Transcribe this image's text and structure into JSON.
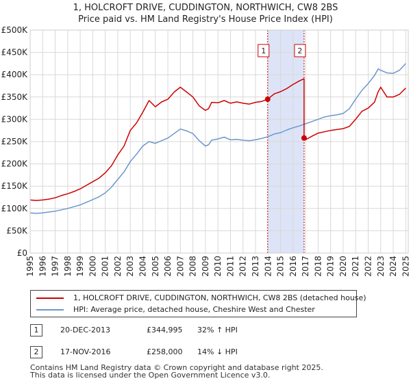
{
  "title_line1": "1, HOLCROFT DRIVE, CUDDINGTON, NORTHWICH, CW8 2BS",
  "title_line2": "Price paid vs. HM Land Registry's House Price Index (HPI)",
  "chart_data": {
    "type": "line",
    "ylim": [
      0,
      500000
    ],
    "xlim": [
      1995,
      2025.2
    ],
    "y_ticks": [
      {
        "value": 0,
        "label": "£0"
      },
      {
        "value": 50000,
        "label": "£50K"
      },
      {
        "value": 100000,
        "label": "£100K"
      },
      {
        "value": 150000,
        "label": "£150K"
      },
      {
        "value": 200000,
        "label": "£200K"
      },
      {
        "value": 250000,
        "label": "£250K"
      },
      {
        "value": 300000,
        "label": "£300K"
      },
      {
        "value": 350000,
        "label": "£350K"
      },
      {
        "value": 400000,
        "label": "£400K"
      },
      {
        "value": 450000,
        "label": "£450K"
      },
      {
        "value": 500000,
        "label": "£500K"
      }
    ],
    "x_ticks": [
      "1995",
      "1996",
      "1997",
      "1998",
      "1999",
      "2000",
      "2001",
      "2002",
      "2003",
      "2004",
      "2005",
      "2006",
      "2007",
      "2008",
      "2009",
      "2010",
      "2011",
      "2012",
      "2013",
      "2014",
      "2015",
      "2016",
      "2017",
      "2018",
      "2019",
      "2020",
      "2021",
      "2022",
      "2023",
      "2024",
      "2025"
    ],
    "grid": true,
    "series": [
      {
        "name": "1, HOLCROFT DRIVE, CUDDINGTON, NORTHWICH, CW8 2BS (detached house)",
        "color": "#cc0000",
        "x": [
          1995.0,
          1995.5,
          1996.0,
          1996.5,
          1997.0,
          1997.5,
          1998.0,
          1998.5,
          1999.0,
          1999.5,
          2000.0,
          2000.5,
          2001.0,
          2001.5,
          2002.0,
          2002.5,
          2003.0,
          2003.5,
          2004.0,
          2004.5,
          2005.0,
          2005.5,
          2006.0,
          2006.5,
          2007.0,
          2007.5,
          2008.0,
          2008.5,
          2009.0,
          2009.25,
          2009.5,
          2010.0,
          2010.5,
          2011.0,
          2011.5,
          2012.0,
          2012.5,
          2013.0,
          2013.5,
          2013.97,
          2014.5,
          2015.0,
          2015.5,
          2016.0,
          2016.5,
          2016.88,
          2016.88,
          2017.0,
          2017.5,
          2018.0,
          2018.5,
          2019.0,
          2019.5,
          2020.0,
          2020.5,
          2021.0,
          2021.5,
          2022.0,
          2022.5,
          2022.8,
          2023.0,
          2023.5,
          2024.0,
          2024.5,
          2025.0
        ],
        "values": [
          119000,
          118000,
          119000,
          121000,
          124000,
          129000,
          133000,
          138000,
          144000,
          152000,
          160000,
          168000,
          180000,
          196000,
          220000,
          240000,
          275000,
          292000,
          316000,
          342000,
          328000,
          339000,
          345000,
          361000,
          372000,
          361000,
          350000,
          330000,
          320000,
          324000,
          338000,
          337000,
          342000,
          336000,
          339000,
          336000,
          334000,
          338000,
          340000,
          344995,
          357000,
          362000,
          369000,
          378000,
          386000,
          391000,
          258000,
          254000,
          262000,
          269000,
          272000,
          275000,
          277000,
          279000,
          284000,
          300000,
          318000,
          325000,
          338000,
          362000,
          372000,
          350000,
          350000,
          356000,
          370000
        ]
      },
      {
        "name": "HPI: Average price, detached house, Cheshire West and Chester",
        "color": "#6b96cc",
        "x": [
          1995.0,
          1995.5,
          1996.0,
          1996.5,
          1997.0,
          1997.5,
          1998.0,
          1998.5,
          1999.0,
          1999.5,
          2000.0,
          2000.5,
          2001.0,
          2001.5,
          2002.0,
          2002.5,
          2003.0,
          2003.5,
          2004.0,
          2004.5,
          2005.0,
          2005.5,
          2006.0,
          2006.5,
          2007.0,
          2007.5,
          2008.0,
          2008.5,
          2009.0,
          2009.25,
          2009.5,
          2010.0,
          2010.5,
          2011.0,
          2011.5,
          2012.0,
          2012.5,
          2013.0,
          2013.5,
          2014.0,
          2014.5,
          2015.0,
          2015.5,
          2016.0,
          2016.5,
          2017.0,
          2017.5,
          2018.0,
          2018.5,
          2019.0,
          2019.5,
          2020.0,
          2020.5,
          2021.0,
          2021.5,
          2022.0,
          2022.5,
          2022.8,
          2023.0,
          2023.5,
          2024.0,
          2024.5,
          2025.0
        ],
        "values": [
          90000,
          89000,
          90000,
          92000,
          94000,
          97000,
          100000,
          104000,
          108000,
          114000,
          120000,
          126000,
          135000,
          148000,
          165000,
          182000,
          205000,
          222000,
          240000,
          250000,
          246000,
          252000,
          258000,
          268000,
          278000,
          274000,
          268000,
          252000,
          240000,
          243000,
          253000,
          256000,
          260000,
          254000,
          255000,
          253000,
          252000,
          254000,
          257000,
          261000,
          267000,
          270000,
          276000,
          281000,
          285000,
          290000,
          295000,
          300000,
          305000,
          308000,
          310000,
          313000,
          324000,
          345000,
          365000,
          380000,
          398000,
          413000,
          410000,
          404000,
          403000,
          410000,
          425000
        ]
      }
    ],
    "sales": [
      {
        "id": "1",
        "x": 2013.97,
        "value": 344995,
        "date": "20-DEC-2013",
        "price": "£344,995",
        "hpi": "32% ↑ HPI"
      },
      {
        "id": "2",
        "x": 2016.88,
        "value": 258000,
        "date": "17-NOV-2016",
        "price": "£258,000",
        "hpi": "14% ↓ HPI"
      }
    ],
    "shaded_region": [
      2013.97,
      2016.88
    ],
    "marker_color": "#cc0000",
    "shade_color": "#dde4f7"
  },
  "legend": {
    "property_label": "1, HOLCROFT DRIVE, CUDDINGTON, NORTHWICH, CW8 2BS (detached house)",
    "hpi_label": "HPI: Average price, detached house, Cheshire West and Chester"
  },
  "footer": {
    "line1": "Contains HM Land Registry data © Crown copyright and database right 2025.",
    "line2": "This data is licensed under the Open Government Licence v3.0."
  }
}
